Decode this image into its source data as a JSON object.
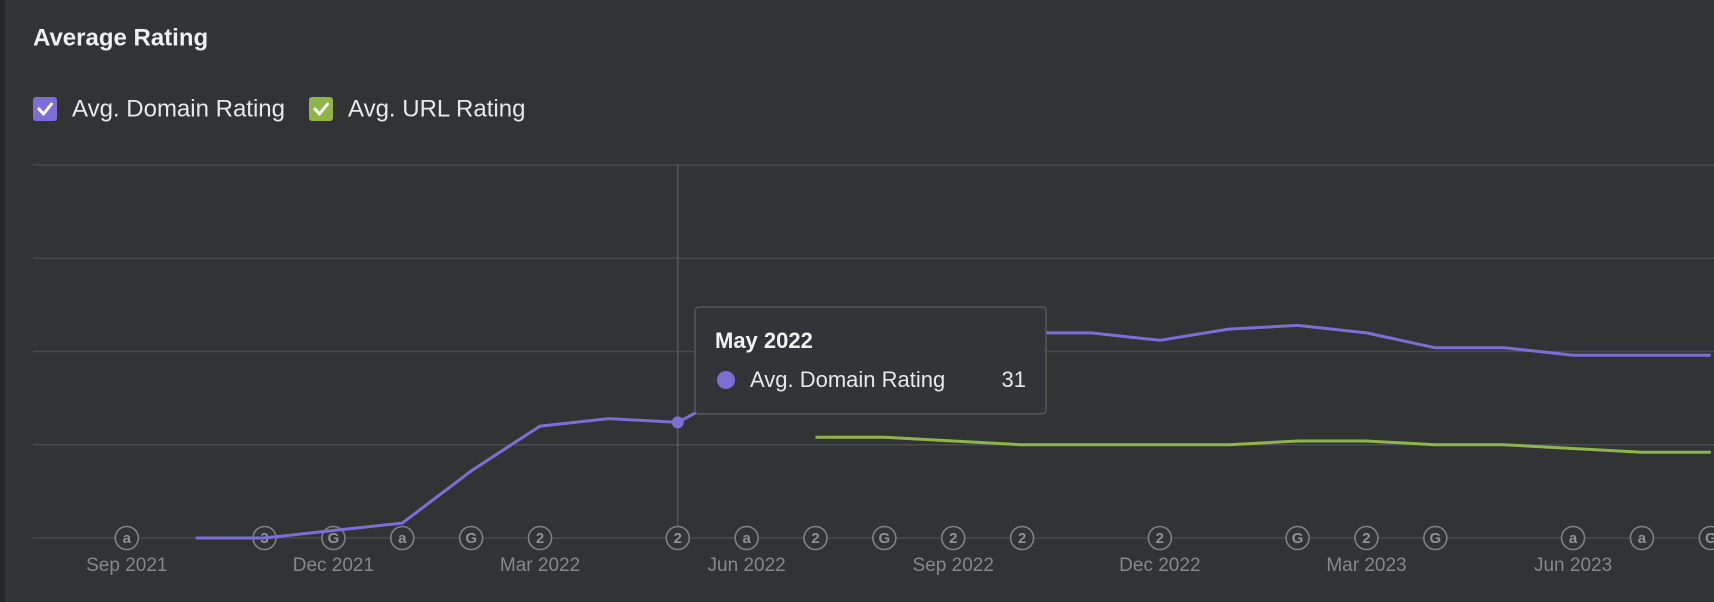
{
  "chart_data": {
    "type": "line",
    "title": "Average Rating",
    "categories": [
      "Sep 2021",
      null,
      null,
      "Dec 2021",
      null,
      null,
      "Mar 2022",
      null,
      null,
      "Jun 2022",
      null,
      null,
      "Sep 2022",
      null,
      null,
      "Dec 2022",
      null,
      null,
      "Mar 2023",
      null,
      null,
      "Jun 2023",
      null,
      null
    ],
    "series": [
      {
        "name": "Avg. Domain Rating",
        "color": "#7b6fd6",
        "checked": true,
        "values": [
          null,
          0,
          0,
          2,
          4,
          18,
          30,
          32,
          31,
          41,
          52,
          55,
          55,
          55,
          55,
          53,
          56,
          57,
          55,
          51,
          51,
          49,
          49,
          49
        ]
      },
      {
        "name": "Avg. URL Rating",
        "color": "#8fb54a",
        "checked": true,
        "values": [
          null,
          null,
          null,
          null,
          null,
          null,
          null,
          null,
          null,
          null,
          27,
          27,
          26,
          25,
          25,
          25,
          25,
          26,
          26,
          25,
          25,
          24,
          23,
          23
        ]
      }
    ],
    "annotations": [
      "a",
      null,
      "3",
      "G",
      "a",
      "G",
      "2",
      null,
      "2",
      "a",
      "2",
      "G",
      "2",
      "2",
      null,
      "2",
      null,
      "G",
      "2",
      "G",
      null,
      "a",
      "a",
      "G"
    ],
    "ylim": [
      0,
      100
    ],
    "yticks": [
      0,
      25,
      50,
      75,
      100
    ],
    "grid": true,
    "tooltip": {
      "title": "May 2022",
      "series": "Avg. Domain Rating",
      "value": 31
    }
  }
}
